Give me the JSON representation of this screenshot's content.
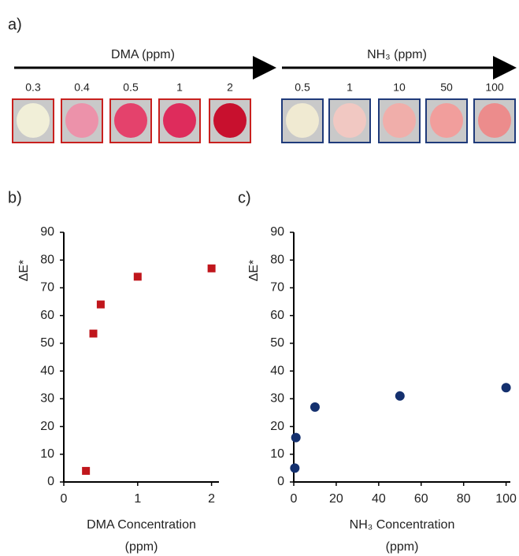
{
  "panel_a": {
    "label": "a)",
    "groups": [
      {
        "title": "DMA (ppm)",
        "labels": [
          "0.3",
          "0.4",
          "0.5",
          "1",
          "2"
        ],
        "border": "#c8201e",
        "colors": [
          "#f1efd8",
          "#ec92aa",
          "#e4426c",
          "#de2c5c",
          "#c8102e"
        ]
      },
      {
        "title": "NH₃ (ppm)",
        "labels": [
          "0.5",
          "1",
          "10",
          "50",
          "100"
        ],
        "border": "#1f3a7a",
        "colors": [
          "#f0ead2",
          "#f1c8c2",
          "#f0aeaa",
          "#f19e9c",
          "#ec8c8c"
        ]
      }
    ]
  },
  "chart_data": [
    {
      "type": "scatter",
      "panel_label": "b)",
      "marker": "square",
      "color": "#c0161c",
      "x": [
        0.3,
        0.4,
        0.5,
        1,
        2
      ],
      "values": [
        4,
        53.5,
        64,
        74,
        77
      ],
      "xlim": [
        0,
        2.1
      ],
      "xticks": [
        0,
        1,
        2
      ],
      "ylim": [
        0,
        90
      ],
      "yticks": [
        0,
        10,
        20,
        30,
        40,
        50,
        60,
        70,
        80,
        90
      ],
      "y_label": "ΔE*",
      "x_label": [
        "DMA Concentration",
        "(ppm)"
      ]
    },
    {
      "type": "scatter",
      "panel_label": "c)",
      "marker": "circle",
      "color": "#14306e",
      "x": [
        0.5,
        1,
        10,
        50,
        100
      ],
      "values": [
        5,
        16,
        27,
        31,
        34
      ],
      "xlim": [
        0,
        102
      ],
      "xticks": [
        0,
        20,
        40,
        60,
        80,
        100
      ],
      "ylim": [
        0,
        90
      ],
      "yticks": [
        0,
        10,
        20,
        30,
        40,
        50,
        60,
        70,
        80,
        90
      ],
      "y_label": "ΔE*",
      "x_label": [
        "NH₃ Concentration",
        "(ppm)"
      ]
    }
  ]
}
